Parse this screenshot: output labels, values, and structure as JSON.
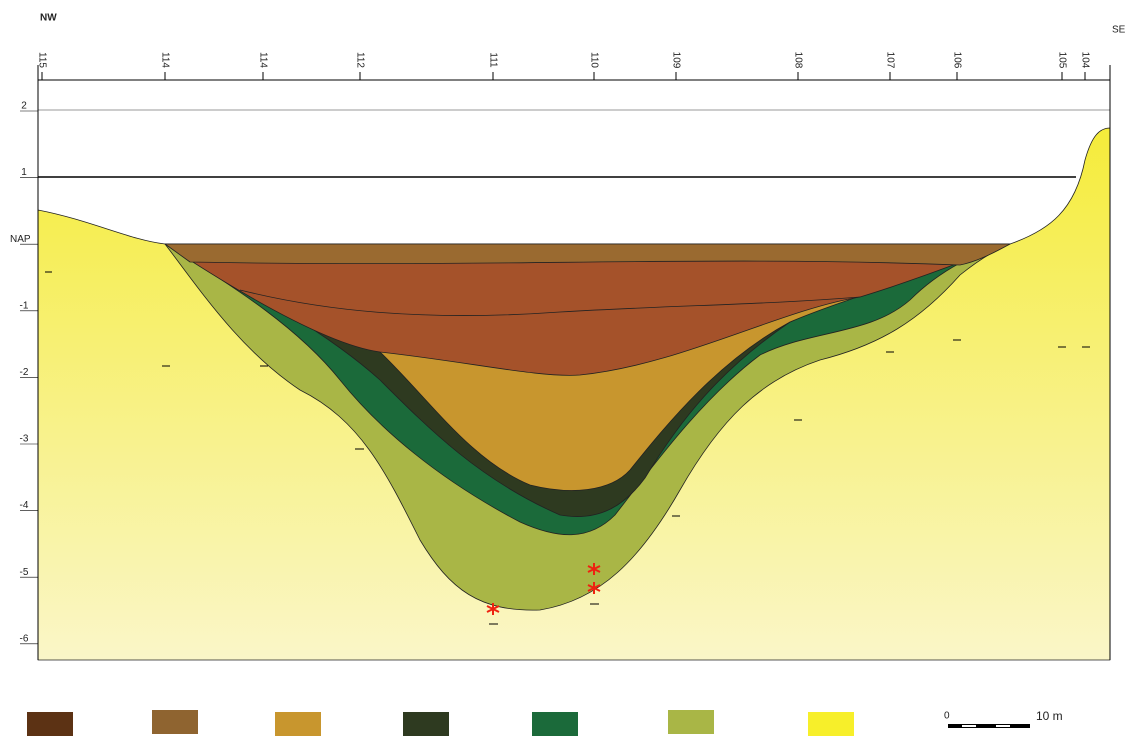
{
  "header": {
    "left": "NW",
    "right": "SE"
  },
  "boreholes": [
    "115",
    "114",
    "114",
    "112",
    "111",
    "110",
    "109",
    "108",
    "107",
    "106",
    "105",
    "104"
  ],
  "depth_labels": [
    "2",
    "1",
    "NAP",
    "-1",
    "-2",
    "-3",
    "-4",
    "-5",
    "-6"
  ],
  "scale": {
    "start": "0",
    "end": "10 m"
  }
}
